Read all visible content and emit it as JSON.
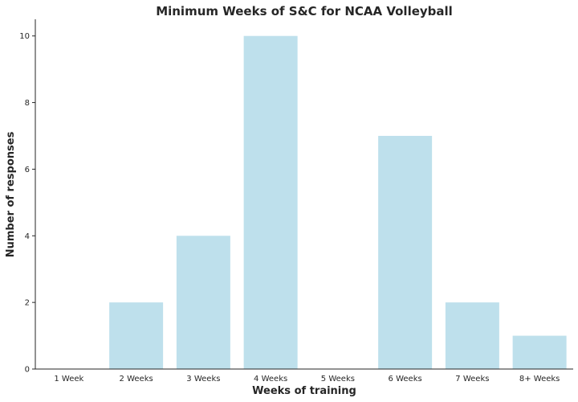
{
  "chart_data": {
    "type": "bar",
    "title": "Minimum Weeks of S&C for NCAA Volleyball",
    "xlabel": "Weeks of training",
    "ylabel": "Number of responses",
    "categories": [
      "1 Week",
      "2 Weeks",
      "3 Weeks",
      "4 Weeks",
      "5 Weeks",
      "6 Weeks",
      "7 Weeks",
      "8+ Weeks"
    ],
    "values": [
      0,
      2,
      4,
      10,
      0,
      7,
      2,
      1
    ],
    "ylim": [
      0,
      10.5
    ],
    "yticks": [
      0,
      2,
      4,
      6,
      8,
      10
    ],
    "grid": false,
    "bar_color": "#bee0ec",
    "axis_color": "#262626"
  }
}
